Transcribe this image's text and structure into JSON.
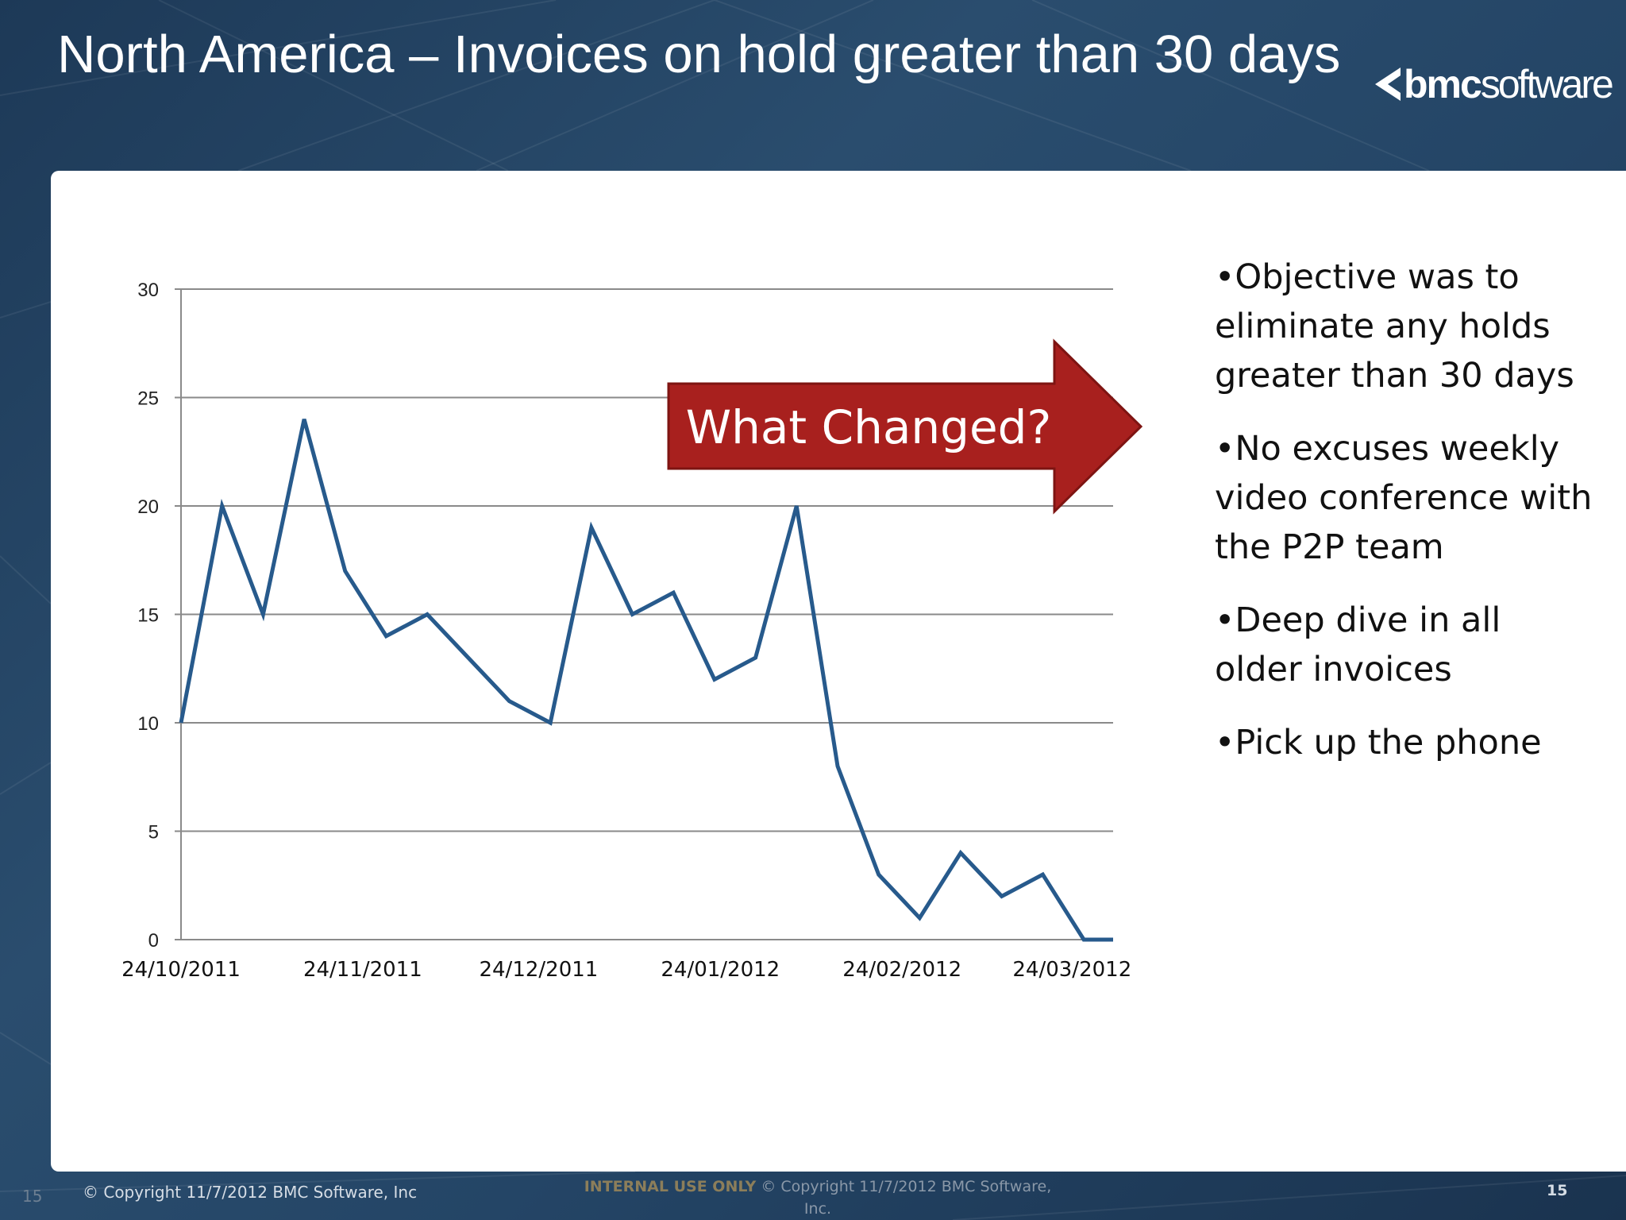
{
  "slide": {
    "title": "North America – Invoices on hold greater than 30 days",
    "logo_bold": "bmc",
    "logo_light": "software"
  },
  "callout": {
    "text": "What Changed?",
    "color": "#a8201e"
  },
  "bullets": [
    "•Objective was to eliminate any holds greater than 30 days",
    "•No excuses weekly video conference with the P2P team",
    "•Deep dive in all older invoices",
    "•Pick up the phone"
  ],
  "footer": {
    "page_left": "15",
    "copyright": "© Copyright 11/7/2012 BMC Software, Inc",
    "internal": "INTERNAL USE ONLY",
    "center_copyright": "© Copyright 11/7/2012 BMC Software, Inc.",
    "page_right": "15"
  },
  "chart_data": {
    "type": "line",
    "x_tick_labels": [
      "24/10/2011",
      "24/11/2011",
      "24/12/2011",
      "24/01/2012",
      "24/02/2012",
      "24/03/2012"
    ],
    "y_tick_labels": [
      "0",
      "5",
      "10",
      "15",
      "20",
      "25",
      "30"
    ],
    "ylim": [
      0,
      30
    ],
    "xlim": [
      "2011-10-24",
      "2012-03-31"
    ],
    "grid": true,
    "line_color": "#275a8c",
    "series": [
      {
        "x": [
          "2011-10-24",
          "2011-10-31",
          "2011-11-07",
          "2011-11-14",
          "2011-11-21",
          "2011-11-28",
          "2011-12-05",
          "2011-12-12",
          "2011-12-19",
          "2011-12-26",
          "2012-01-02",
          "2012-01-09",
          "2012-01-16",
          "2012-01-23",
          "2012-01-30",
          "2012-02-06",
          "2012-02-13",
          "2012-02-20",
          "2012-02-27",
          "2012-03-05",
          "2012-03-12",
          "2012-03-19",
          "2012-03-26",
          "2012-03-31"
        ],
        "values": [
          10,
          20,
          15,
          24,
          17,
          14,
          15,
          13,
          11,
          10,
          19,
          15,
          16,
          12,
          13,
          20,
          8,
          3,
          1,
          4,
          2,
          3,
          0,
          0
        ]
      }
    ]
  }
}
